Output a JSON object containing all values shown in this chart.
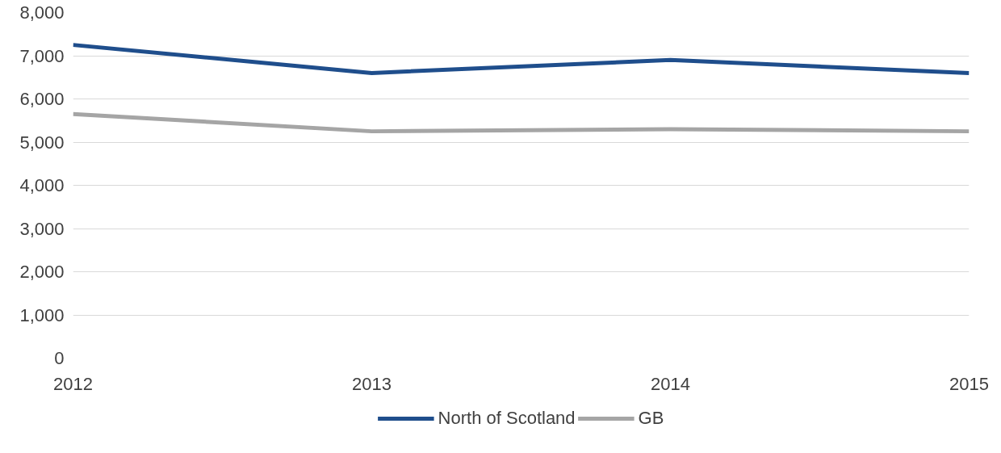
{
  "chart_data": {
    "type": "line",
    "x": [
      2012,
      2013,
      2014,
      2015
    ],
    "xlim": [
      2012,
      2015
    ],
    "xticks": [
      2012,
      2013,
      2014,
      2015
    ],
    "ylim": [
      0,
      8000
    ],
    "yticks": [
      {
        "value": 0,
        "label": "0"
      },
      {
        "value": 1000,
        "label": "1,000"
      },
      {
        "value": 2000,
        "label": "2,000"
      },
      {
        "value": 3000,
        "label": "3,000"
      },
      {
        "value": 4000,
        "label": "4,000"
      },
      {
        "value": 5000,
        "label": "5,000"
      },
      {
        "value": 6000,
        "label": "6,000"
      },
      {
        "value": 7000,
        "label": "7,000"
      },
      {
        "value": 8000,
        "label": "8,000"
      }
    ],
    "grid": "y",
    "legend": "bottom",
    "line_style": "solid",
    "marker": "none",
    "series": [
      {
        "name": "North of Scotland",
        "color": "#1f4e8c",
        "values": [
          7250,
          6600,
          6900,
          6600
        ]
      },
      {
        "name": "GB",
        "color": "#a5a5a5",
        "values": [
          5650,
          5250,
          5300,
          5250
        ]
      }
    ]
  }
}
